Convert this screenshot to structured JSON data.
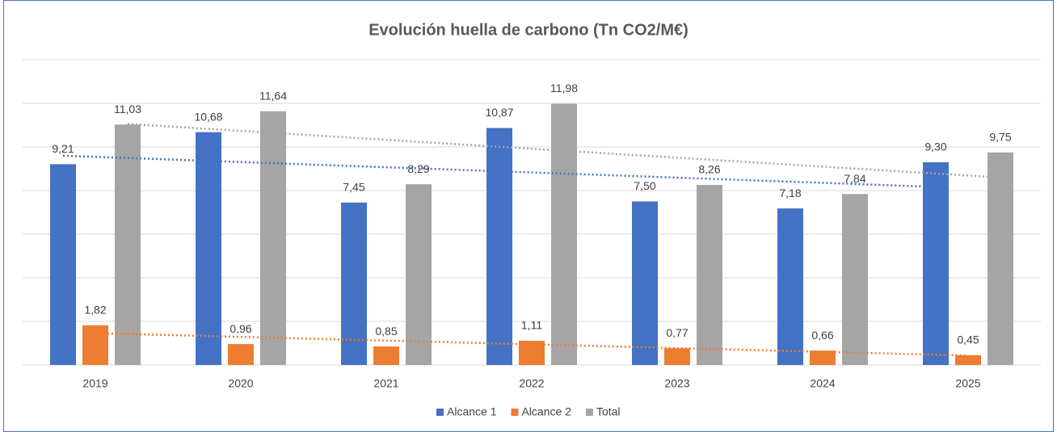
{
  "chart_data": {
    "type": "bar",
    "title": "Evolución huella de carbono (Tn CO2/M€)",
    "categories": [
      "2019",
      "2020",
      "2021",
      "2022",
      "2023",
      "2024",
      "2025"
    ],
    "series": [
      {
        "name": "Alcance 1",
        "color": "#4472c4",
        "values": [
          9.21,
          10.68,
          7.45,
          10.87,
          7.5,
          7.18,
          9.3
        ],
        "value_labels": [
          "9,21",
          "10,68",
          "7,45",
          "10,87",
          "7,50",
          "7,18",
          "9,30"
        ]
      },
      {
        "name": "Alcance 2",
        "color": "#ed7d31",
        "values": [
          1.82,
          0.96,
          0.85,
          1.11,
          0.77,
          0.66,
          0.45
        ],
        "value_labels": [
          "1,82",
          "0,96",
          "0,85",
          "1,11",
          "0,77",
          "0,66",
          "0,45"
        ]
      },
      {
        "name": "Total",
        "color": "#a5a5a5",
        "values": [
          11.03,
          11.64,
          8.29,
          11.98,
          8.26,
          7.84,
          9.75
        ],
        "value_labels": [
          "11,03",
          "11,64",
          "8,29",
          "11,98",
          "8,26",
          "7,84",
          "9,75"
        ]
      }
    ],
    "ylim": [
      0,
      14
    ],
    "yticks": [
      0,
      2,
      4,
      6,
      8,
      10,
      12,
      14
    ],
    "ytick_labels": false,
    "grid": true,
    "trendline": "linear",
    "legend": "bottom"
  }
}
